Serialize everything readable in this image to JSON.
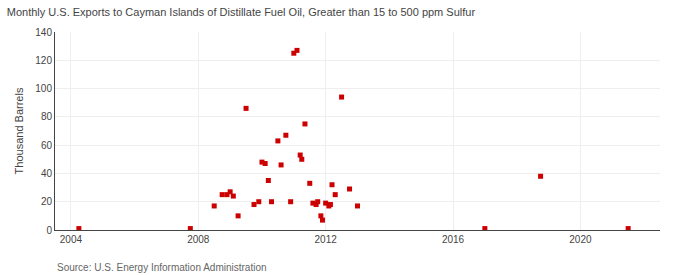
{
  "chart_data": {
    "type": "scatter",
    "title": "Monthly U.S. Exports to Cayman Islands of Distillate Fuel Oil, Greater than 15 to 500 ppm Sulfur",
    "ylabel": "Thousand Barrels",
    "annotations": [
      "Source: U.S. Energy Information Administration"
    ],
    "color": "#cc0000",
    "marker": "square",
    "grid": true,
    "xlim": [
      2003.5,
      2022.5
    ],
    "xticks": [
      2004,
      2008,
      2012,
      2016,
      2020
    ],
    "ylim": [
      0,
      140
    ],
    "yticks": [
      0,
      20,
      40,
      60,
      80,
      100,
      120,
      140
    ],
    "x": [
      2004.25,
      2007.75,
      2008.5,
      2008.75,
      2008.9,
      2009.0,
      2009.1,
      2009.25,
      2009.5,
      2009.75,
      2009.9,
      2010.0,
      2010.1,
      2010.2,
      2010.3,
      2010.5,
      2010.6,
      2010.75,
      2010.9,
      2011.0,
      2011.1,
      2011.2,
      2011.25,
      2011.35,
      2011.5,
      2011.6,
      2011.7,
      2011.75,
      2011.85,
      2011.9,
      2012.0,
      2012.1,
      2012.15,
      2012.2,
      2012.3,
      2012.5,
      2012.75,
      2013.0,
      2017.0,
      2018.75,
      2021.5
    ],
    "values": [
      1,
      1,
      17,
      25,
      25,
      27,
      24,
      10,
      86,
      18,
      20,
      48,
      47,
      35,
      20,
      63,
      46,
      67,
      20,
      125,
      127,
      53,
      50,
      75,
      33,
      19,
      18,
      20,
      10,
      7,
      19,
      17,
      18,
      32,
      25,
      94,
      29,
      17,
      1,
      38,
      1
    ]
  }
}
